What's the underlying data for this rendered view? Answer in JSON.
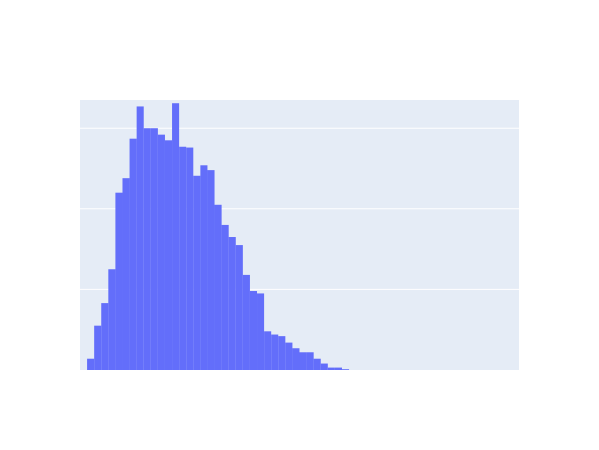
{
  "chart_data": {
    "type": "bar",
    "title": "",
    "xlabel": "",
    "ylabel": "",
    "xlim": [
      0,
      62
    ],
    "ylim": [
      0,
      335
    ],
    "grid": true,
    "grid_values": [
      0,
      100,
      200,
      300
    ],
    "bar_color": "#636efa",
    "plot_bg": "#e5ecf6",
    "gridline_color": "#ffffff",
    "values": [
      0,
      14,
      55,
      83,
      125,
      220,
      238,
      287,
      327,
      300,
      300,
      292,
      285,
      331,
      277,
      276,
      241,
      254,
      248,
      205,
      180,
      165,
      155,
      118,
      98,
      95,
      48,
      44,
      42,
      34,
      27,
      22,
      22,
      14,
      8,
      3,
      3,
      1,
      0,
      0,
      0,
      0,
      0,
      0,
      0,
      0,
      0,
      0,
      0,
      0,
      0,
      0,
      0,
      0,
      0,
      0,
      0,
      0,
      0,
      0,
      0,
      0
    ]
  }
}
